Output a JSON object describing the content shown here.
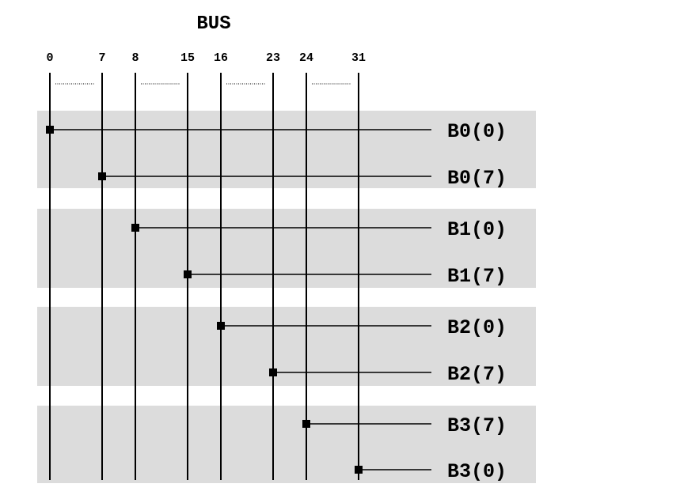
{
  "title": "BUS",
  "bit_labels": [
    "0",
    "7",
    "8",
    "15",
    "16",
    "23",
    "24",
    "31"
  ],
  "signal_labels": [
    "B0(0)",
    "B0(7)",
    "B1(0)",
    "B1(7)",
    "B2(0)",
    "B2(7)",
    "B3(7)",
    "B3(0)"
  ],
  "connections": [
    {
      "signal": "B0(0)",
      "bit": "0"
    },
    {
      "signal": "B0(7)",
      "bit": "7"
    },
    {
      "signal": "B1(0)",
      "bit": "8"
    },
    {
      "signal": "B1(7)",
      "bit": "15"
    },
    {
      "signal": "B2(0)",
      "bit": "16"
    },
    {
      "signal": "B2(7)",
      "bit": "23"
    },
    {
      "signal": "B3(7)",
      "bit": "24"
    },
    {
      "signal": "B3(0)",
      "bit": "31"
    }
  ],
  "colors": {
    "band": "#dcdcdc",
    "line": "#000000",
    "background": "#ffffff"
  }
}
